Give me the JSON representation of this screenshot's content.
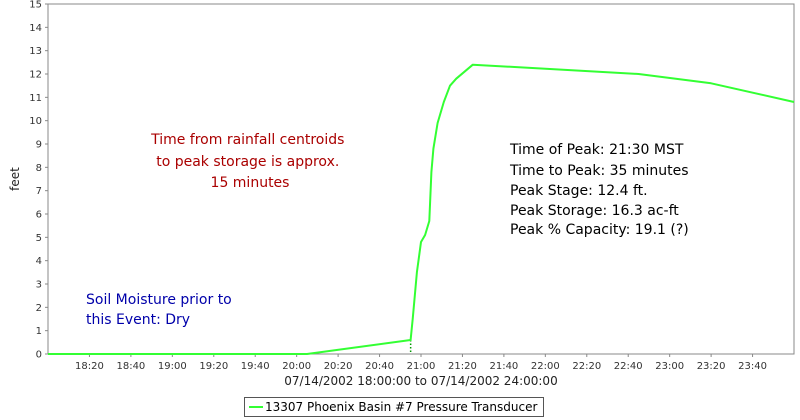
{
  "chart_data": {
    "type": "line",
    "title": "",
    "xlabel": "07/14/2002 18:00:00 to 07/14/2002 24:00:00",
    "ylabel": "feet",
    "xlim": [
      "18:00",
      "24:00"
    ],
    "ylim": [
      0,
      15
    ],
    "grid": false,
    "x_ticks": [
      "18:20",
      "18:40",
      "19:00",
      "19:20",
      "19:40",
      "20:00",
      "20:20",
      "20:40",
      "21:00",
      "21:20",
      "21:40",
      "22:00",
      "22:20",
      "22:40",
      "23:00",
      "23:20",
      "23:40"
    ],
    "y_ticks": [
      0,
      1,
      2,
      3,
      4,
      5,
      6,
      7,
      8,
      9,
      10,
      11,
      12,
      13,
      14,
      15
    ],
    "series": [
      {
        "name": "13307 Phoenix Basin #7 Pressure Transducer",
        "color": "#33ff33",
        "points": [
          [
            "18:00",
            0.0
          ],
          [
            "20:05",
            0.0
          ],
          [
            "20:55",
            0.6
          ],
          [
            "20:56",
            1.5
          ],
          [
            "20:57",
            2.5
          ],
          [
            "20:58",
            3.5
          ],
          [
            "21:00",
            4.8
          ],
          [
            "21:02",
            5.1
          ],
          [
            "21:04",
            5.7
          ],
          [
            "21:05",
            7.8
          ],
          [
            "21:06",
            8.8
          ],
          [
            "21:08",
            9.9
          ],
          [
            "21:11",
            10.8
          ],
          [
            "21:14",
            11.5
          ],
          [
            "21:17",
            11.8
          ],
          [
            "21:25",
            12.4
          ],
          [
            "22:45",
            12.0
          ],
          [
            "23:20",
            11.6
          ],
          [
            "24:00",
            10.8
          ]
        ]
      }
    ],
    "legend": {
      "position": "bottom-center"
    },
    "marker_line": {
      "x": "20:55",
      "style": "dotted"
    },
    "annotations": [
      {
        "id": "centroid-note",
        "color": "#aa0000",
        "lines": [
          "Time from rainfall centroids",
          "to peak storage is approx.",
          "15 minutes"
        ]
      },
      {
        "id": "peak-stats",
        "color": "#000000",
        "lines": [
          "Time of Peak: 21:30 MST",
          "Time to Peak: 35 minutes",
          "Peak Stage: 12.4 ft.",
          "Peak Storage: 16.3 ac-ft",
          "Peak % Capacity: 19.1 (?)"
        ]
      },
      {
        "id": "soil-note",
        "color": "#0000aa",
        "lines": [
          "Soil Moisture prior to",
          "this Event: Dry"
        ]
      }
    ]
  }
}
